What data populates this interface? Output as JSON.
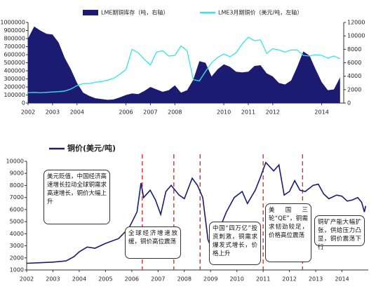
{
  "chart_data": [
    {
      "type": "combo",
      "x": [
        2002,
        2002.25,
        2002.5,
        2002.75,
        2003,
        2003.25,
        2003.5,
        2003.75,
        2004,
        2004.25,
        2004.5,
        2004.75,
        2005,
        2005.25,
        2005.5,
        2005.75,
        2006,
        2006.25,
        2006.5,
        2006.75,
        2007,
        2007.25,
        2007.5,
        2007.75,
        2008,
        2008.25,
        2008.5,
        2008.75,
        2009,
        2009.25,
        2009.5,
        2009.75,
        2010,
        2010.25,
        2010.5,
        2010.75,
        2011,
        2011.25,
        2011.5,
        2011.75,
        2012,
        2012.25,
        2012.5,
        2012.75,
        2013,
        2013.25,
        2013.5,
        2013.75,
        2014,
        2014.25,
        2014.5,
        2014.75
      ],
      "xlim": [
        2002,
        2014.9
      ],
      "xticks": [
        2002,
        2003,
        2004,
        2006,
        2007,
        2008,
        2010,
        2011,
        2012,
        2014
      ],
      "ylim": [
        0,
        1000000
      ],
      "yticks": [
        0,
        100000,
        200000,
        300000,
        400000,
        500000,
        600000,
        700000,
        800000,
        900000,
        1000000
      ],
      "y2lim": [
        0,
        12000
      ],
      "y2ticks": [
        0,
        2000,
        4000,
        6000,
        8000,
        10000,
        12000
      ],
      "series": [
        {
          "name": "LME期铜库存（吨，右轴）",
          "color": "#1b1b72",
          "kind": "area",
          "values": [
            800000,
            950000,
            900000,
            860000,
            850000,
            750000,
            560000,
            420000,
            250000,
            130000,
            90000,
            60000,
            50000,
            40000,
            45000,
            70000,
            100000,
            120000,
            110000,
            150000,
            200000,
            170000,
            140000,
            160000,
            220000,
            130000,
            160000,
            290000,
            520000,
            500000,
            330000,
            420000,
            480000,
            450000,
            390000,
            380000,
            390000,
            460000,
            470000,
            370000,
            330000,
            250000,
            230000,
            280000,
            450000,
            640000,
            590000,
            420000,
            260000,
            160000,
            170000,
            320000
          ]
        },
        {
          "name": "LME3月期铜价（美元/吨，左轴）",
          "color": "#33e6e6",
          "kind": "line",
          "axis": "y2",
          "values": [
            1550,
            1600,
            1550,
            1600,
            1650,
            1700,
            1800,
            2100,
            2600,
            2900,
            2900,
            3100,
            3200,
            3400,
            3700,
            4300,
            5000,
            8000,
            7500,
            6500,
            5700,
            7600,
            7800,
            7000,
            7100,
            8500,
            7800,
            3500,
            3300,
            4700,
            6000,
            6800,
            7300,
            6900,
            7500,
            8800,
            9800,
            9300,
            9400,
            7400,
            8100,
            7900,
            7600,
            7900,
            7900,
            7100,
            7000,
            7200,
            7100,
            6700,
            7000,
            6600
          ]
        }
      ]
    },
    {
      "type": "line",
      "x": [
        2002,
        2002.5,
        2003,
        2003.5,
        2003.8,
        2004,
        2004.3,
        2004.6,
        2005,
        2005.5,
        2005.9,
        2006.2,
        2006.35,
        2006.45,
        2006.7,
        2006.9,
        2007.1,
        2007.3,
        2007.5,
        2007.8,
        2008,
        2008.3,
        2008.5,
        2008.7,
        2008.9,
        2009,
        2009.3,
        2009.6,
        2009.9,
        2010.2,
        2010.4,
        2010.7,
        2010.9,
        2011.1,
        2011.4,
        2011.6,
        2011.8,
        2012,
        2012.2,
        2012.4,
        2012.6,
        2012.9,
        2013.1,
        2013.3,
        2013.5,
        2013.8,
        2014,
        2014.2,
        2014.4,
        2014.6,
        2014.75,
        2014.85,
        2014.9
      ],
      "xlim": [
        2002,
        2015
      ],
      "xticks": [
        2002,
        2003,
        2004,
        2005,
        2006,
        2007,
        2008,
        2009,
        2010,
        2011,
        2012,
        2013,
        2014
      ],
      "ylim": [
        1000,
        10000
      ],
      "yticks": [
        1000,
        2000,
        3000,
        4000,
        5000,
        6000,
        7000,
        8000,
        9000,
        10000
      ],
      "series": [
        {
          "name": "铜价(美元/吨)",
          "color": "#1b1b72",
          "values": [
            1550,
            1600,
            1650,
            1750,
            2100,
            2500,
            2900,
            2800,
            3200,
            3600,
            4500,
            5800,
            8200,
            7000,
            7600,
            6800,
            5600,
            7500,
            8000,
            7200,
            6900,
            8600,
            8000,
            7000,
            3500,
            3000,
            4200,
            5800,
            7000,
            7500,
            6500,
            7600,
            8700,
            9900,
            9200,
            9700,
            7200,
            7500,
            8400,
            7600,
            7500,
            8000,
            8100,
            7300,
            6900,
            7200,
            7100,
            6700,
            6800,
            7000,
            6600,
            5800,
            6300
          ]
        }
      ],
      "vlines": [
        2006.4,
        2007.6,
        2008.6,
        2011.0,
        2012.5
      ],
      "vline_color": "#e03030",
      "annotations": [
        "美元贬值，中国经济高速增长拉动全球铜需求高速增长，铜价大幅上升",
        "全球经济增速放缓，铜价高位震荡",
        "中国“四万亿”投资刺激，铜需求爆发式增长，价格上升",
        "美国三轮“QE”，铜需求韧劲较足，价格高位震荡",
        "铜矿产能大幅扩张，供给压力凸显，铜价震荡下行"
      ]
    }
  ]
}
